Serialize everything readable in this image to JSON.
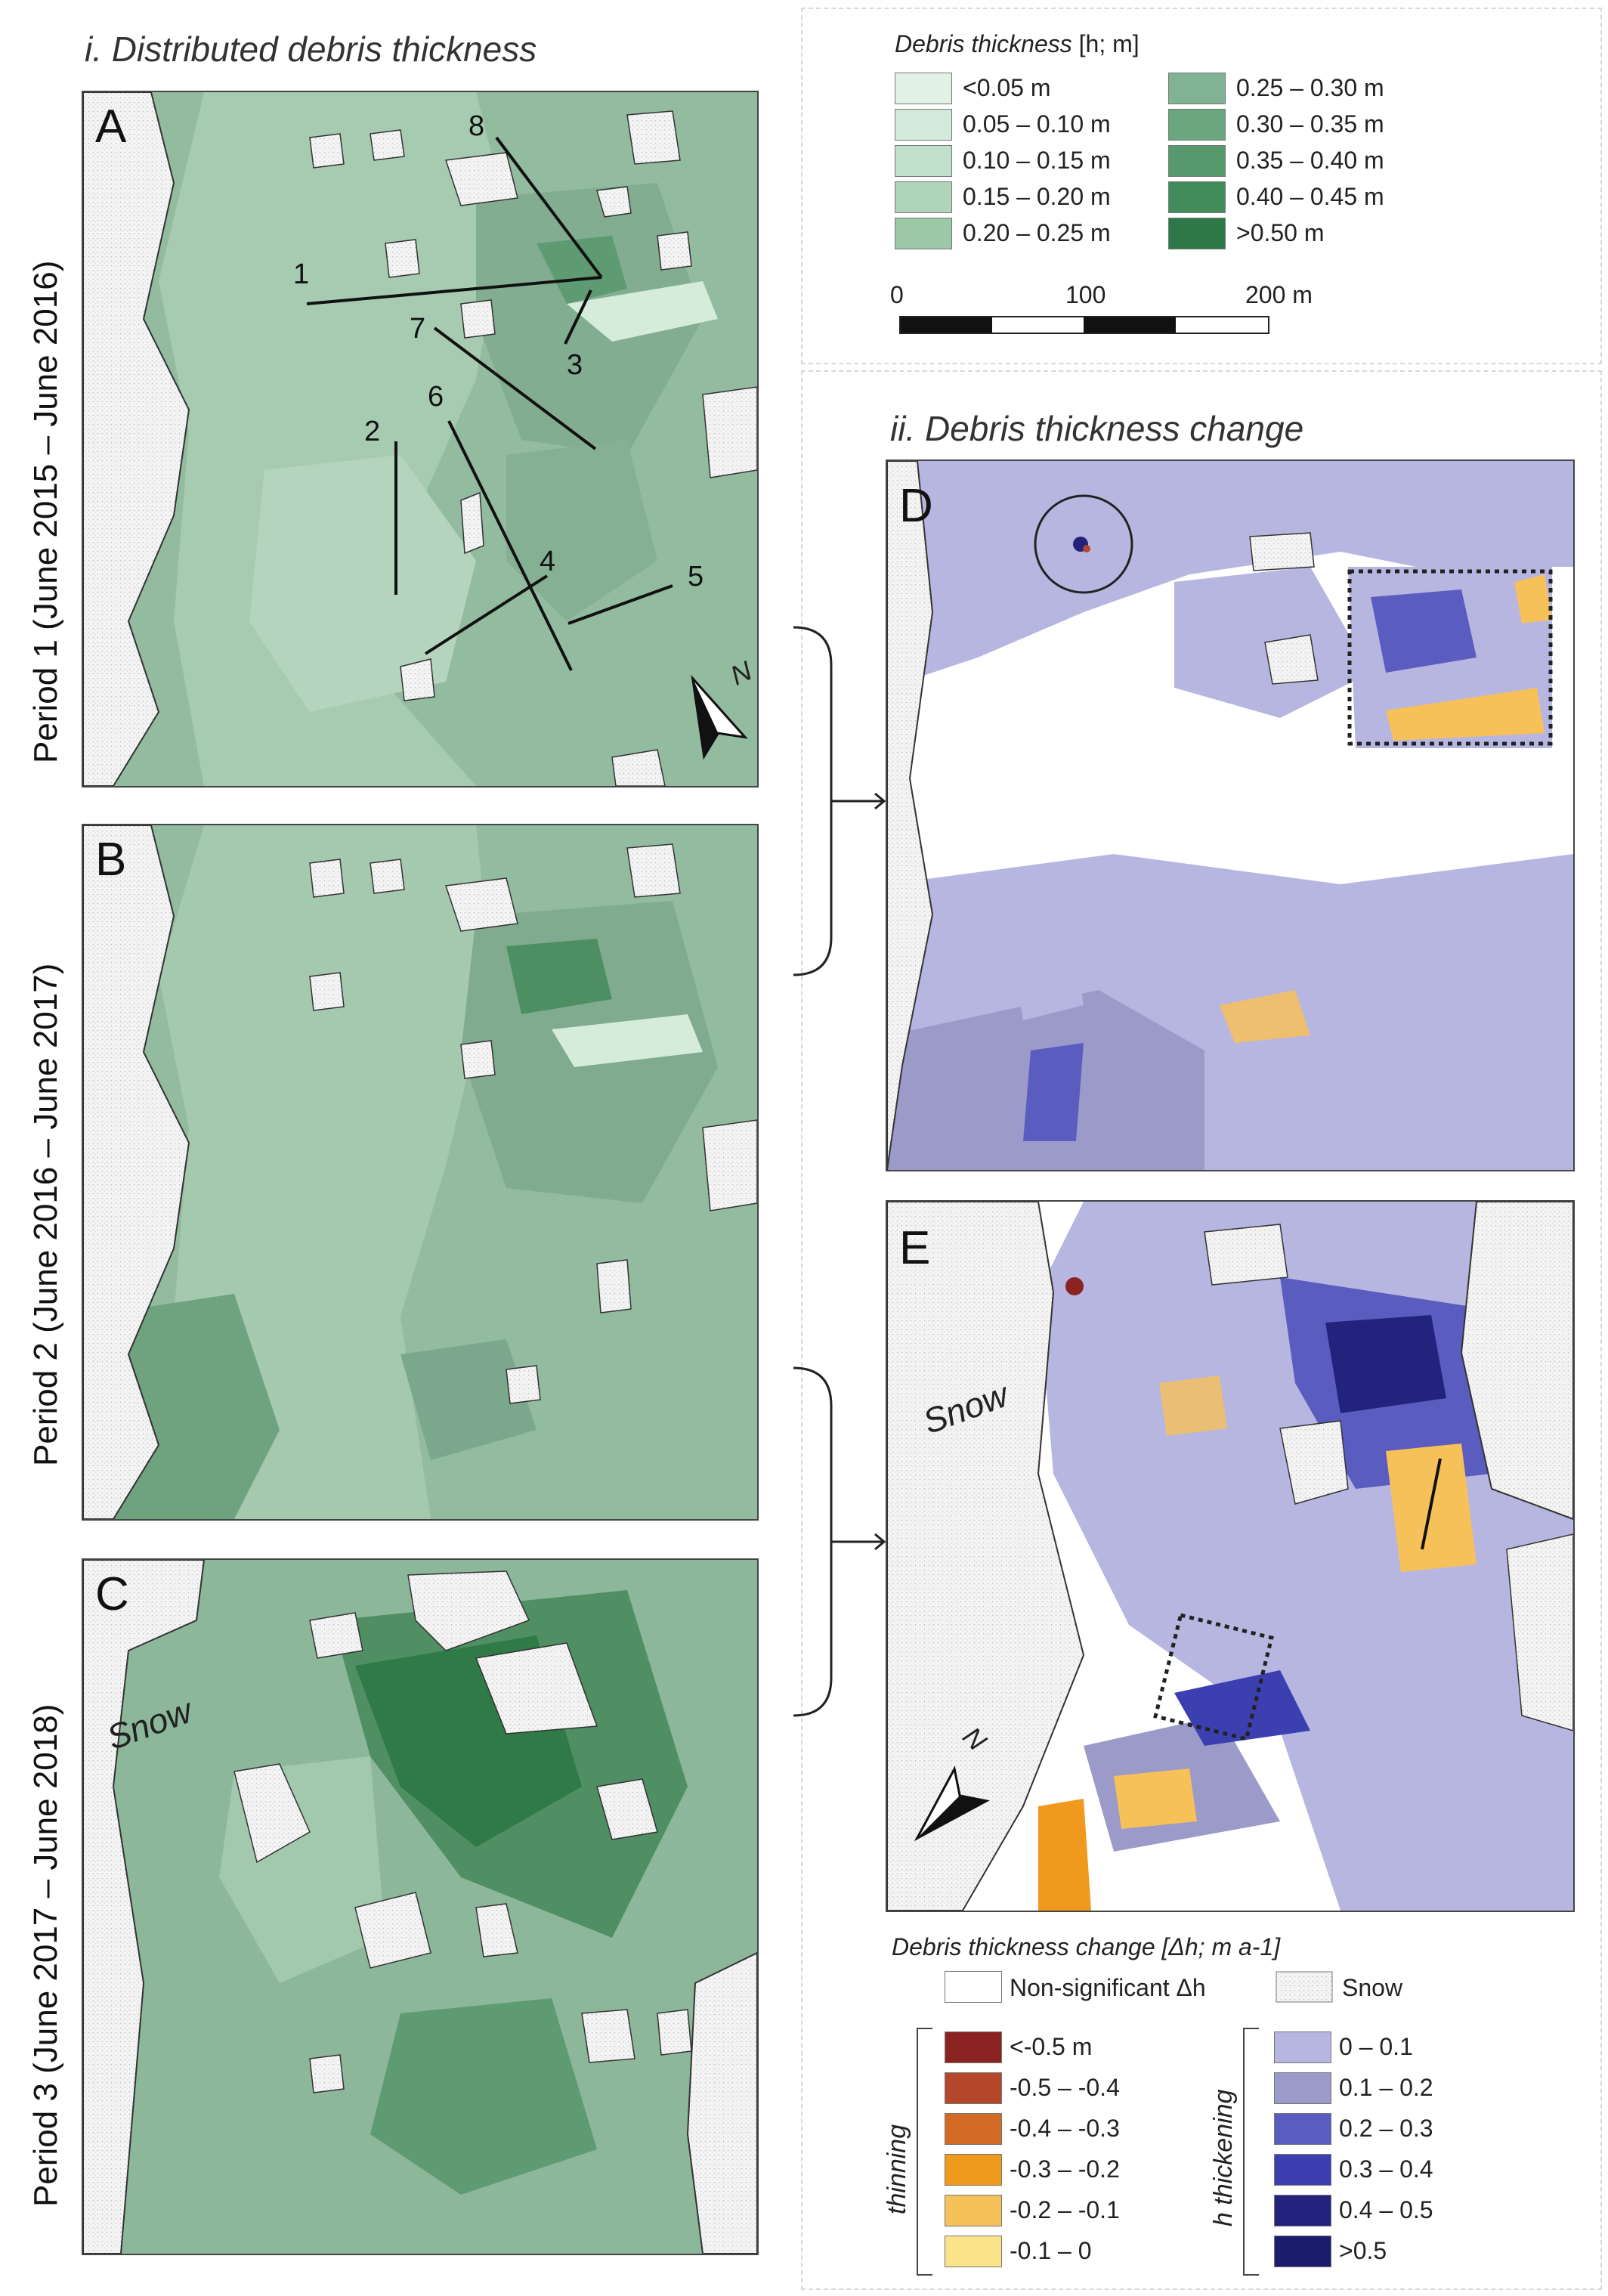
{
  "section_i": {
    "title": "i. Distributed debris thickness"
  },
  "section_ii": {
    "title": "ii. Debris thickness change"
  },
  "panels": {
    "A": {
      "letter": "A",
      "period": "Period 1 (June 2015 – June 2016)"
    },
    "B": {
      "letter": "B",
      "period": "Period 2 (June 2016 – June 2017)"
    },
    "C": {
      "letter": "C",
      "period": "Period 3 (June 2017 – June 2018)",
      "snow": "Snow"
    },
    "D": {
      "letter": "D"
    },
    "E": {
      "letter": "E",
      "snow": "Snow"
    }
  },
  "profile_lines": [
    "1",
    "2",
    "3",
    "4",
    "5",
    "6",
    "7",
    "8"
  ],
  "north_arrow": {
    "label": "N"
  },
  "thickness_legend": {
    "title_prefix": "Debris thickness",
    "title_suffix": "[h; m]",
    "classes": [
      {
        "label": "<0.05 m",
        "color": "#e3f2e6"
      },
      {
        "label": "0.05 – 0.10 m",
        "color": "#d2eadb"
      },
      {
        "label": "0.10 – 0.15 m",
        "color": "#c0e0cb"
      },
      {
        "label": "0.15 – 0.20 m",
        "color": "#aed5ba"
      },
      {
        "label": "0.20 – 0.25 m",
        "color": "#9ccaa9"
      },
      {
        "label": "0.25 – 0.30 m",
        "color": "#7fb393"
      },
      {
        "label": "0.30 – 0.35 m",
        "color": "#6aa77f"
      },
      {
        "label": "0.35 – 0.40 m",
        "color": "#56996c"
      },
      {
        "label": "0.40 – 0.45 m",
        "color": "#428b5a"
      },
      {
        "label": ">0.50 m",
        "color": "#2e7847"
      }
    ]
  },
  "scale_bar": {
    "labels": [
      "0",
      "100",
      "200 m"
    ]
  },
  "change_legend": {
    "title": "Debris thickness change [Δh; m a-1]",
    "non_significant": "Non-significant Δh",
    "snow": "Snow",
    "thinning_label": "thinning",
    "thickening_label": "h thickening",
    "thinning": [
      {
        "label": "<-0.5 m",
        "color": "#8b2323"
      },
      {
        "label": "-0.5 – -0.4",
        "color": "#b5472b"
      },
      {
        "label": "-0.4 – -0.3",
        "color": "#d46b25"
      },
      {
        "label": "-0.3 – -0.2",
        "color": "#ef9a1d"
      },
      {
        "label": "-0.2 – -0.1",
        "color": "#f7c15a"
      },
      {
        "label": "-0.1 – 0",
        "color": "#fbe38a"
      }
    ],
    "thickening": [
      {
        "label": "0 – 0.1",
        "color": "#b7b6e0"
      },
      {
        "label": "0.1 – 0.2",
        "color": "#9b9ac8"
      },
      {
        "label": "0.2 – 0.3",
        "color": "#5a5cc0"
      },
      {
        "label": "0.3 – 0.4",
        "color": "#3c3fb0"
      },
      {
        "label": "0.4 – 0.5",
        "color": "#23237e"
      },
      {
        "label": ">0.5",
        "color": "#1c1c6e"
      }
    ]
  }
}
